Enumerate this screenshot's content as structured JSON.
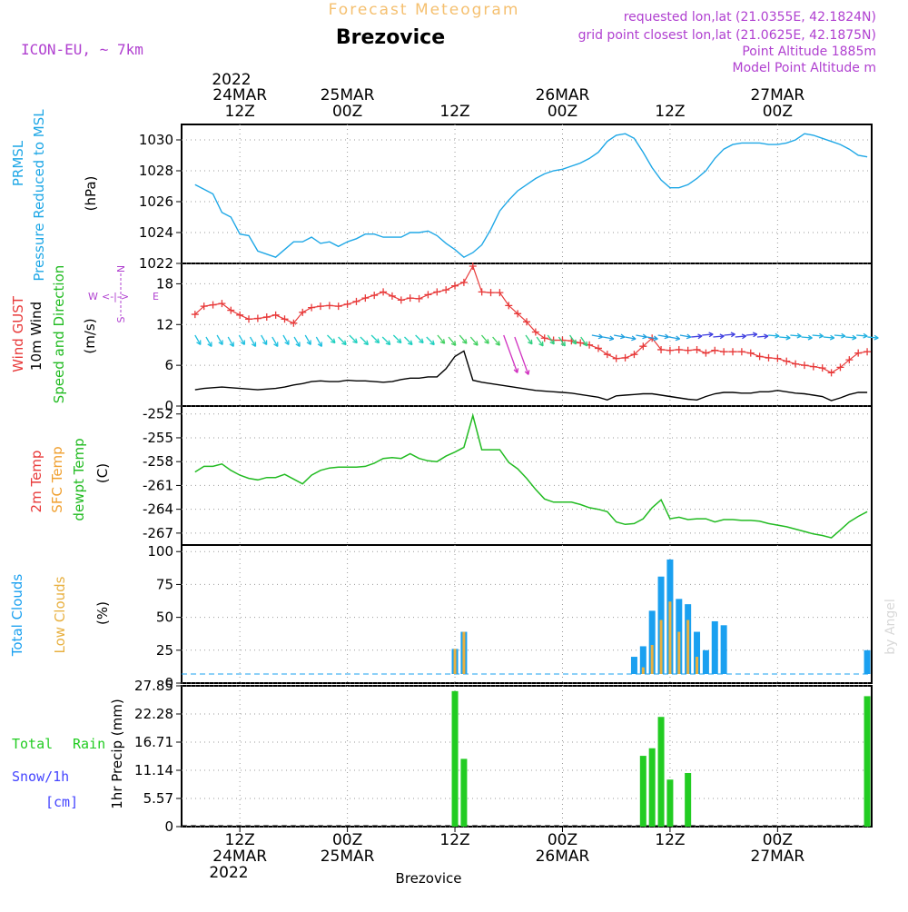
{
  "header": {
    "title_top": "Forecast Meteogram",
    "location": "Brezovice",
    "model": "ICON-EU, ~ 7km",
    "requested": "requested lon,lat (21.0355E, 42.1824N)",
    "grid_point": "grid point closest lon,lat (21.0625E, 42.1875N)",
    "point_altitude": "Point Altitude 1885m",
    "model_altitude": "Model Point Altitude m",
    "footer_location": "Brezovice",
    "credit": "by Angel"
  },
  "colors": {
    "pressure": "#1ea7e6",
    "gust": "#e83a3a",
    "wind": "#000000",
    "temp_green": "#22bb22",
    "sfc_orange": "#f0a030",
    "total_cloud": "#1aa0f0",
    "low_cloud": "#e8b040",
    "rain": "#22cc22",
    "snow": "#4444ff",
    "purple": "#b040d0",
    "title_orange": "#f5c070"
  },
  "time_axis": {
    "top_year": "2022",
    "top_labels": [
      {
        "top": "24MAR",
        "bottom": "12Z",
        "h": 12
      },
      {
        "top": "25MAR",
        "bottom": "00Z",
        "h": 24
      },
      {
        "top": "",
        "bottom": "12Z",
        "h": 36
      },
      {
        "top": "26MAR",
        "bottom": "00Z",
        "h": 48
      },
      {
        "top": "",
        "bottom": "12Z",
        "h": 60
      },
      {
        "top": "27MAR",
        "bottom": "00Z",
        "h": 72
      }
    ],
    "bottom_labels": [
      {
        "top": "12Z",
        "bottom": "24MAR",
        "h": 12
      },
      {
        "top": "00Z",
        "bottom": "25MAR",
        "h": 24
      },
      {
        "top": "12Z",
        "bottom": "",
        "h": 36
      },
      {
        "top": "00Z",
        "bottom": "26MAR",
        "h": 48
      },
      {
        "top": "12Z",
        "bottom": "",
        "h": 60
      },
      {
        "top": "00Z",
        "bottom": "27MAR",
        "h": 72
      }
    ],
    "bottom_year": "2022"
  },
  "chart_data": [
    {
      "type": "line",
      "panel": "pressure",
      "ylabel": "PRMSL Pressure Reduced to MSL",
      "unit": "(hPa)",
      "ylim": [
        1022,
        1031
      ],
      "yticks": [
        "1022",
        "1024",
        "1026",
        "1028",
        "1030"
      ],
      "series": [
        {
          "name": "PRMSL",
          "x": [
            7,
            8,
            9,
            10,
            11,
            12,
            13,
            14,
            15,
            16,
            17,
            18,
            19,
            20,
            21,
            22,
            23,
            24,
            25,
            26,
            27,
            28,
            29,
            30,
            31,
            32,
            33,
            34,
            35,
            36,
            37,
            38,
            39,
            40,
            41,
            42,
            43,
            44,
            45,
            46,
            47,
            48,
            49,
            50,
            51,
            52,
            53,
            54,
            55,
            56,
            57,
            58,
            59,
            60,
            61,
            62,
            63,
            64,
            65,
            66,
            67,
            68,
            69,
            70,
            71,
            72,
            73,
            74,
            75,
            76,
            77,
            78,
            79,
            80,
            81,
            82
          ],
          "values": [
            1027.1,
            1026.8,
            1026.5,
            1025.3,
            1025.0,
            1023.9,
            1023.8,
            1022.8,
            1022.6,
            1022.4,
            1022.9,
            1023.4,
            1023.4,
            1023.7,
            1023.3,
            1023.4,
            1023.1,
            1023.4,
            1023.6,
            1023.9,
            1023.9,
            1023.7,
            1023.7,
            1023.7,
            1024.0,
            1024.0,
            1024.1,
            1023.8,
            1023.3,
            1022.9,
            1022.4,
            1022.7,
            1023.2,
            1024.2,
            1025.4,
            1026.1,
            1026.7,
            1027.1,
            1027.5,
            1027.8,
            1028.0,
            1028.1,
            1028.3,
            1028.5,
            1028.8,
            1029.2,
            1029.9,
            1030.3,
            1030.4,
            1030.1,
            1029.2,
            1028.2,
            1027.4,
            1026.9,
            1026.9,
            1027.1,
            1027.5,
            1028.0,
            1028.8,
            1029.4,
            1029.7,
            1029.8,
            1029.8,
            1029.8,
            1029.7,
            1029.7,
            1029.8,
            1030.0,
            1030.4,
            1030.3,
            1030.1,
            1029.9,
            1029.7,
            1029.4,
            1029.0,
            1028.9
          ]
        }
      ]
    },
    {
      "type": "line",
      "panel": "wind",
      "ylabels": [
        "Wind GUST",
        "10m Wind",
        "Speed and Direction"
      ],
      "unit": "(m/s)",
      "ylim": [
        0,
        21
      ],
      "yticks": [
        "0",
        "6",
        "12",
        "18"
      ],
      "compass": {
        "n": "N",
        "s": "S",
        "w": "W",
        "e": "E"
      },
      "series": [
        {
          "name": "Wind GUST",
          "x": [
            7,
            8,
            9,
            10,
            11,
            12,
            13,
            14,
            15,
            16,
            17,
            18,
            19,
            20,
            21,
            22,
            23,
            24,
            25,
            26,
            27,
            28,
            29,
            30,
            31,
            32,
            33,
            34,
            35,
            36,
            37,
            38,
            39,
            40,
            41,
            42,
            43,
            44,
            45,
            46,
            47,
            48,
            49,
            50,
            51,
            52,
            53,
            54,
            55,
            56,
            57,
            58,
            59,
            60,
            61,
            62,
            63,
            64,
            65,
            66,
            67,
            68,
            69,
            70,
            71,
            72,
            73,
            74,
            75,
            76,
            77,
            78,
            79,
            80,
            81,
            82
          ],
          "values": [
            13.5,
            14.7,
            14.9,
            15.1,
            14.1,
            13.4,
            12.8,
            12.9,
            13.1,
            13.4,
            12.8,
            12.2,
            13.8,
            14.5,
            14.7,
            14.8,
            14.7,
            15.0,
            15.4,
            15.9,
            16.3,
            16.8,
            16.2,
            15.6,
            15.9,
            15.8,
            16.4,
            16.8,
            17.1,
            17.7,
            18.2,
            20.6,
            16.8,
            16.7,
            16.7,
            14.8,
            13.6,
            12.4,
            10.9,
            10.0,
            9.7,
            9.7,
            9.6,
            9.3,
            9.0,
            8.5,
            7.6,
            7.0,
            7.1,
            7.6,
            8.8,
            10.0,
            8.3,
            8.2,
            8.3,
            8.2,
            8.3,
            7.8,
            8.2,
            8.0,
            8.0,
            8.0,
            7.8,
            7.3,
            7.1,
            7.0,
            6.6,
            6.2,
            6.0,
            5.8,
            5.6,
            4.9,
            5.7,
            6.8,
            7.8,
            8.0
          ]
        },
        {
          "name": "10m Wind",
          "x": [
            7,
            8,
            9,
            10,
            11,
            12,
            13,
            14,
            15,
            16,
            17,
            18,
            19,
            20,
            21,
            22,
            23,
            24,
            25,
            26,
            27,
            28,
            29,
            30,
            31,
            32,
            33,
            34,
            35,
            36,
            37,
            38,
            39,
            40,
            41,
            42,
            43,
            44,
            45,
            46,
            47,
            48,
            49,
            50,
            51,
            52,
            53,
            54,
            55,
            56,
            57,
            58,
            59,
            60,
            61,
            62,
            63,
            64,
            65,
            66,
            67,
            68,
            69,
            70,
            71,
            72,
            73,
            74,
            75,
            76,
            77,
            78,
            79,
            80,
            81,
            82
          ],
          "values": [
            2.4,
            2.6,
            2.7,
            2.8,
            2.7,
            2.6,
            2.5,
            2.4,
            2.5,
            2.6,
            2.8,
            3.1,
            3.3,
            3.6,
            3.7,
            3.6,
            3.6,
            3.8,
            3.7,
            3.7,
            3.6,
            3.5,
            3.6,
            3.9,
            4.1,
            4.1,
            4.3,
            4.3,
            5.5,
            7.3,
            8.1,
            3.8,
            3.5,
            3.3,
            3.1,
            2.9,
            2.7,
            2.5,
            2.3,
            2.2,
            2.1,
            2.0,
            1.9,
            1.7,
            1.5,
            1.3,
            0.9,
            1.5,
            1.6,
            1.7,
            1.8,
            1.8,
            1.6,
            1.4,
            1.2,
            1.0,
            0.9,
            1.4,
            1.8,
            2.0,
            2.0,
            1.9,
            1.9,
            2.1,
            2.1,
            2.3,
            2.1,
            1.9,
            1.8,
            1.6,
            1.4,
            0.8,
            1.2,
            1.7,
            2.0,
            2.0
          ]
        }
      ]
    },
    {
      "type": "line",
      "panel": "temperature",
      "ylabels": [
        "2m Temp",
        "SFC Temp",
        "dewpt Temp"
      ],
      "unit": "(C)",
      "ylim": [
        -268.5,
        -251
      ],
      "yticks": [
        "-252",
        "-255",
        "-258",
        "-261",
        "-264",
        "-267"
      ],
      "series": [
        {
          "name": "dewpt Temp",
          "x": [
            7,
            8,
            9,
            10,
            11,
            12,
            13,
            14,
            15,
            16,
            17,
            18,
            19,
            20,
            21,
            22,
            23,
            24,
            25,
            26,
            27,
            28,
            29,
            30,
            31,
            32,
            33,
            34,
            35,
            36,
            37,
            38,
            39,
            40,
            41,
            42,
            43,
            44,
            45,
            46,
            47,
            48,
            49,
            50,
            51,
            52,
            53,
            54,
            55,
            56,
            57,
            58,
            59,
            60,
            61,
            62,
            63,
            64,
            65,
            66,
            67,
            68,
            69,
            70,
            71,
            72,
            73,
            74,
            75,
            76,
            77,
            78,
            79,
            80,
            81,
            82
          ],
          "values": [
            -259.3,
            -258.6,
            -258.6,
            -258.3,
            -259.1,
            -259.7,
            -260.1,
            -260.3,
            -260.0,
            -260.0,
            -259.6,
            -260.2,
            -260.8,
            -259.7,
            -259.1,
            -258.8,
            -258.7,
            -258.7,
            -258.7,
            -258.6,
            -258.2,
            -257.6,
            -257.5,
            -257.6,
            -257.0,
            -257.6,
            -257.9,
            -258.0,
            -257.3,
            -256.8,
            -256.2,
            -252.2,
            -256.5,
            -256.5,
            -256.5,
            -258.1,
            -258.9,
            -260.1,
            -261.5,
            -262.7,
            -263.1,
            -263.1,
            -263.1,
            -263.4,
            -263.8,
            -264.0,
            -264.3,
            -265.6,
            -265.9,
            -265.8,
            -265.2,
            -263.8,
            -262.8,
            -265.2,
            -265.0,
            -265.3,
            -265.2,
            -265.2,
            -265.6,
            -265.3,
            -265.3,
            -265.4,
            -265.4,
            -265.5,
            -265.8,
            -266.0,
            -266.2,
            -266.5,
            -266.8,
            -267.1,
            -267.3,
            -267.6,
            -266.6,
            -265.6,
            -264.9,
            -264.3
          ]
        }
      ]
    },
    {
      "type": "bar",
      "panel": "clouds",
      "ylabels": [
        "Total Clouds",
        "Low Clouds"
      ],
      "unit": "(%)",
      "ylim": [
        0,
        105
      ],
      "yticks": [
        "0",
        "25",
        "50",
        "75",
        "100"
      ],
      "series": [
        {
          "name": "Total Clouds",
          "x": [
            36,
            37,
            56,
            57,
            58,
            59,
            60,
            61,
            62,
            63,
            64,
            65,
            66,
            82
          ],
          "values": [
            26,
            39,
            20,
            28,
            55,
            81,
            94,
            64,
            60,
            39,
            25,
            47,
            44,
            25
          ]
        },
        {
          "name": "Low Clouds",
          "x": [
            36,
            37,
            57,
            58,
            59,
            60,
            61,
            62,
            63
          ],
          "values": [
            26,
            39,
            12,
            29,
            48,
            62,
            39,
            48,
            20
          ]
        }
      ]
    },
    {
      "type": "bar",
      "panel": "precipitation",
      "ylabels": [
        "Total Rain",
        "Snow/1h",
        "[cm]"
      ],
      "unit": "1hr Precip (mm)",
      "ylim": [
        0,
        27.85
      ],
      "yticks": [
        "0",
        "5.57",
        "11.14",
        "16.71",
        "22.28",
        "27.85"
      ],
      "series": [
        {
          "name": "Total Rain",
          "x": [
            36,
            37,
            57,
            58,
            59,
            60,
            62,
            82
          ],
          "values": [
            26.8,
            13.4,
            14.0,
            15.5,
            21.7,
            9.3,
            10.6,
            25.8
          ]
        }
      ]
    }
  ]
}
